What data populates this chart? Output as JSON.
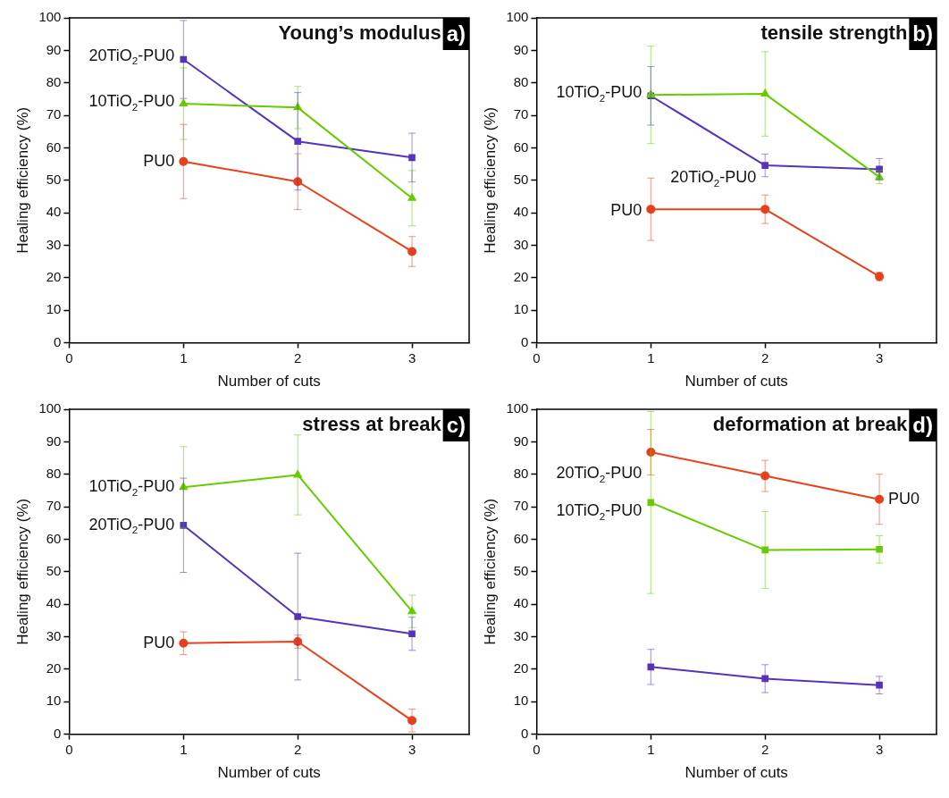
{
  "chart_data": [
    {
      "type": "line",
      "title": "Young’s modulus",
      "annotations": [
        "a)"
      ],
      "xlabel": "Number of cuts",
      "ylabel": "Healing efficiency (%)",
      "xlim": [
        0,
        3.5
      ],
      "xticks": [
        0,
        1,
        2,
        3
      ],
      "ylim": [
        0,
        100
      ],
      "yticks": [
        0,
        10,
        20,
        30,
        40,
        50,
        60,
        70,
        80,
        90,
        100
      ],
      "x": [
        1,
        2,
        3
      ],
      "legend": false,
      "grid": false,
      "series": [
        {
          "name": "PU0",
          "color": "#e8401c",
          "marker": "circle",
          "values": [
            55.8,
            49.6,
            28.1
          ],
          "errors": [
            11.4,
            8.6,
            4.6
          ]
        },
        {
          "name": "10TiO$_{2}$-PU0",
          "color": "#66cc00",
          "marker": "triangle",
          "values": [
            73.6,
            72.4,
            44.5
          ],
          "errors": [
            11,
            6.5,
            8.5
          ]
        },
        {
          "name": "20TiO$_{2}$-PU0",
          "color": "#5533bb",
          "marker": "square",
          "values": [
            87.2,
            62,
            57
          ],
          "errors": [
            12,
            15,
            7.5
          ]
        }
      ]
    },
    {
      "type": "line",
      "title": "tensile strength",
      "annotations": [
        "b)"
      ],
      "xlabel": "Number of cuts",
      "ylabel": "Healing efficiency (%)",
      "xlim": [
        0,
        3.5
      ],
      "xticks": [
        0,
        1,
        2,
        3
      ],
      "ylim": [
        0,
        100
      ],
      "yticks": [
        0,
        10,
        20,
        30,
        40,
        50,
        60,
        70,
        80,
        90,
        100
      ],
      "x": [
        1,
        2,
        3
      ],
      "legend": false,
      "grid": false,
      "series": [
        {
          "name": "PU0",
          "color": "#e8401c",
          "marker": "circle",
          "values": [
            41.1,
            41.1,
            20.4
          ],
          "errors": [
            9.6,
            4.4,
            1.3
          ]
        },
        {
          "name": "10TiO$_{2}$-PU0",
          "color": "#66cc00",
          "marker": "triangle",
          "values": [
            76.3,
            76.6,
            51
          ],
          "errors": [
            15,
            13,
            2
          ]
        },
        {
          "name": "20TiO$_{2}$-PU0",
          "color": "#5533bb",
          "marker": "square",
          "values": [
            76,
            54.6,
            53.4
          ],
          "errors": [
            9,
            3.5,
            3.3
          ]
        }
      ]
    },
    {
      "type": "line",
      "title": "stress at break",
      "annotations": [
        "c)"
      ],
      "xlabel": "Number of cuts",
      "ylabel": "Healing efficiency (%)",
      "xlim": [
        0,
        3.5
      ],
      "xticks": [
        0,
        1,
        2,
        3
      ],
      "ylim": [
        0,
        100
      ],
      "yticks": [
        0,
        10,
        20,
        30,
        40,
        50,
        60,
        70,
        80,
        90,
        100
      ],
      "x": [
        1,
        2,
        3
      ],
      "legend": false,
      "grid": false,
      "series": [
        {
          "name": "PU0",
          "color": "#e8401c",
          "marker": "circle",
          "values": [
            28,
            28.5,
            4.2
          ],
          "errors": [
            3.5,
            2,
            3.5
          ]
        },
        {
          "name": "10TiO$_{2}$-PU0",
          "color": "#66cc00",
          "marker": "triangle",
          "values": [
            76,
            79.8,
            37.8
          ],
          "errors": [
            12.5,
            12.3,
            5
          ]
        },
        {
          "name": "20TiO$_{2}$-PU0",
          "color": "#5533bb",
          "marker": "square",
          "values": [
            64.3,
            36.2,
            30.9
          ],
          "errors": [
            14.5,
            19.5,
            5.1
          ]
        }
      ]
    },
    {
      "type": "line",
      "title": "deformation at break",
      "annotations": [
        "d)",
        {
          "text": "20TiO$_{2}$-PU0",
          "x": 1,
          "y": 86.8
        }
      ],
      "xlabel": "Number of cuts",
      "ylabel": "Healing efficiency (%)",
      "xlim": [
        0,
        3.5
      ],
      "xticks": [
        0,
        1,
        2,
        3
      ],
      "ylim": [
        0,
        100
      ],
      "yticks": [
        0,
        10,
        20,
        30,
        40,
        50,
        60,
        70,
        80,
        90,
        100
      ],
      "x": [
        1,
        2,
        3
      ],
      "legend": false,
      "grid": false,
      "series": [
        {
          "name": "PU0",
          "color": "#e8401c",
          "marker": "circle",
          "values": [
            86.8,
            79.5,
            72.3
          ],
          "errors": [
            7,
            4.8,
            7.7
          ]
        },
        {
          "name": "10TiO$_{2}$-PU0",
          "color": "#66cc00",
          "marker": "square",
          "values": [
            71.3,
            56.7,
            56.9
          ],
          "errors": [
            28,
            11.8,
            4.2
          ]
        },
        {
          "color": "#5533bb",
          "marker": "square",
          "values": [
            20.7,
            17.1,
            15.1
          ],
          "errors": [
            5.4,
            4.3,
            2.7
          ]
        }
      ]
    }
  ]
}
